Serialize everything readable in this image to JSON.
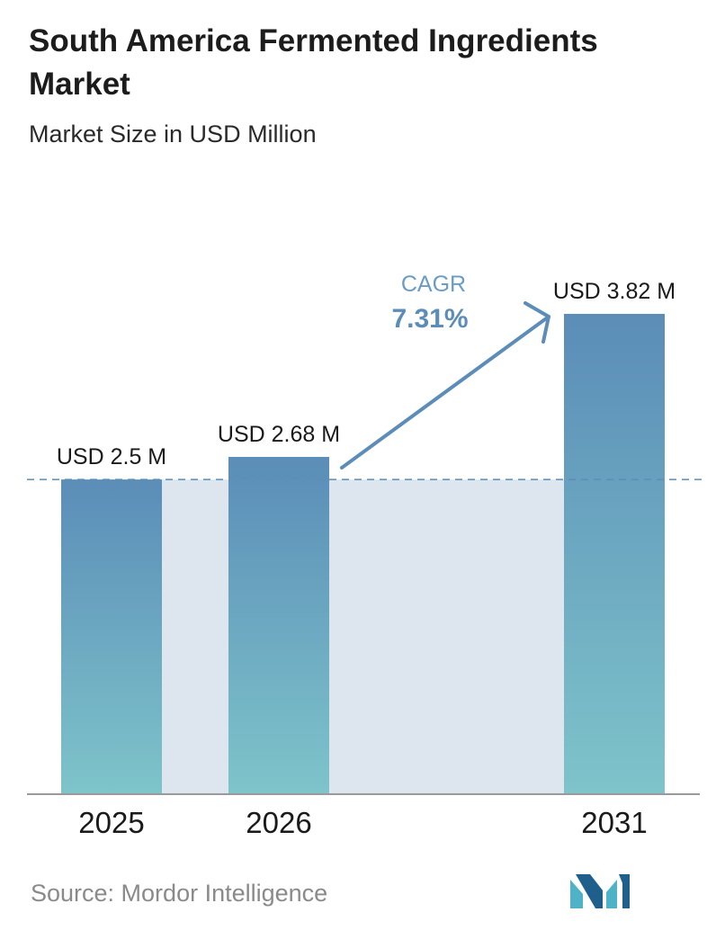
{
  "header": {
    "title": "South America Fermented Ingredients Market",
    "subtitle": "Market Size in USD Million"
  },
  "footer": {
    "source": "Source:  Mordor Intelligence",
    "logo_icon": "mordor-intelligence-logo-icon"
  },
  "colors": {
    "bar_top": "#5b8db8",
    "bar_bottom": "#7ec4ca",
    "band": "#dde6ef",
    "arrow": "#5b8db8",
    "cagr_label": "#6b9cc4",
    "cagr_value": "#5b8db8",
    "dashed_line": "#5b8db8",
    "axis": "#9a9a9a",
    "logo_dark": "#1f5f8b",
    "logo_light": "#4fb3c8"
  },
  "cagr": {
    "label": "CAGR",
    "value": "7.31%"
  },
  "chart_data": {
    "type": "bar",
    "title": "South America Fermented Ingredients Market",
    "subtitle": "Market Size in USD Million",
    "categories": [
      "2025",
      "2026",
      "2031"
    ],
    "values": [
      2.5,
      2.68,
      3.82
    ],
    "data_labels": [
      "USD 2.5 M",
      "USD 2.68 M",
      "USD 3.82 M"
    ],
    "ylim": [
      0,
      4.78
    ],
    "unit": "USD Million",
    "grid": false,
    "legend": "none",
    "reference_line_value": 2.5
  }
}
